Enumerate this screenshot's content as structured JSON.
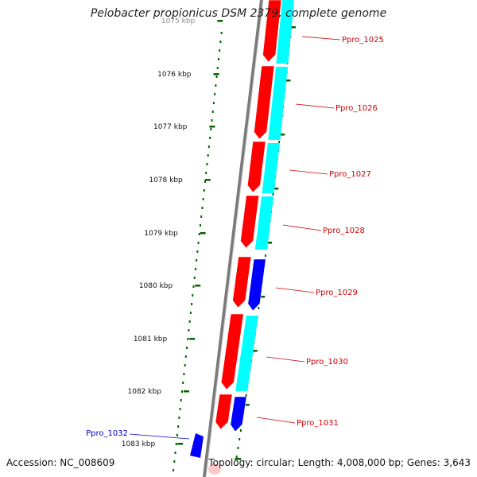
{
  "title": "Pelobacter propionicus DSM 2379, complete genome",
  "footer": {
    "accession": "Accession: NC_008609",
    "summary": "Topology: circular; Length: 4,008,000 bp; Genes: 3,643"
  },
  "colors": {
    "forward_gene": "#ff0000",
    "reverse_gene": "#00ffff",
    "blue_gene": "#0000ff",
    "backbone": "#808080",
    "ticks": "#006400",
    "label_red": "#cc0000",
    "label_blue": "#0000cc"
  },
  "ticks": [
    {
      "label": "1075 kbp"
    },
    {
      "label": "1076 kbp"
    },
    {
      "label": "1077 kbp"
    },
    {
      "label": "1078 kbp"
    },
    {
      "label": "1079 kbp"
    },
    {
      "label": "1080 kbp"
    },
    {
      "label": "1081 kbp"
    },
    {
      "label": "1082 kbp"
    },
    {
      "label": "1083 kbp"
    }
  ],
  "gene_labels": [
    {
      "name": "Ppro_1025",
      "color": "label_red"
    },
    {
      "name": "Ppro_1026",
      "color": "label_red"
    },
    {
      "name": "Ppro_1027",
      "color": "label_red"
    },
    {
      "name": "Ppro_1028",
      "color": "label_red"
    },
    {
      "name": "Ppro_1029",
      "color": "label_red"
    },
    {
      "name": "Ppro_1030",
      "color": "label_red"
    },
    {
      "name": "Ppro_1031",
      "color": "label_red"
    },
    {
      "name": "Ppro_1032",
      "color": "label_blue"
    }
  ]
}
